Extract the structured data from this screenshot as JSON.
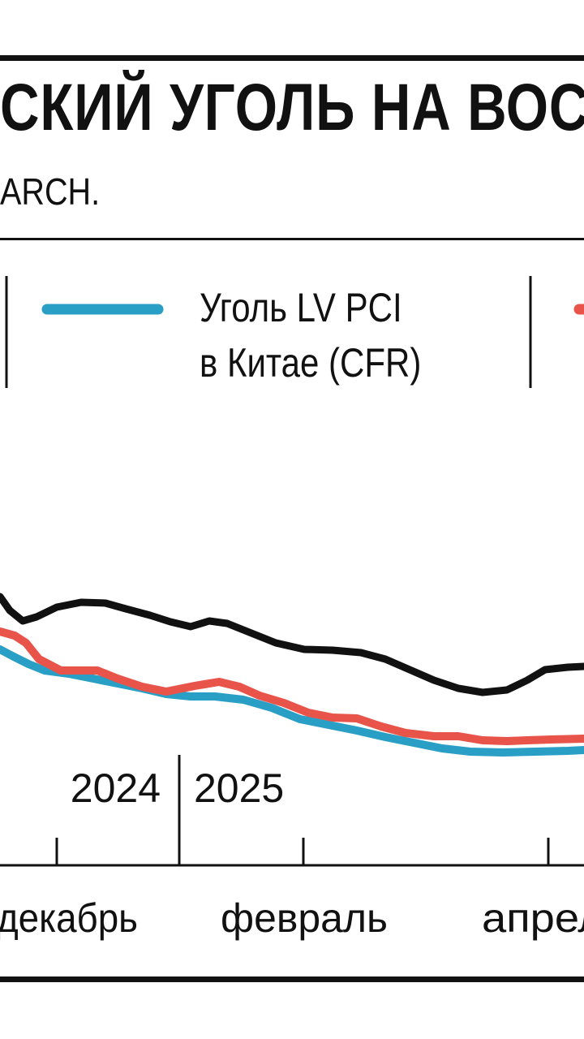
{
  "title": "СКИЙ УГОЛЬ НА ВОС",
  "source": "ARCH.",
  "chart_data": {
    "type": "line",
    "series": [
      {
        "key": "black",
        "name": "",
        "color": "#111111",
        "points": [
          [
            0,
            735
          ],
          [
            12,
            752
          ],
          [
            28,
            765
          ],
          [
            45,
            760
          ],
          [
            70,
            748
          ],
          [
            100,
            742
          ],
          [
            130,
            743
          ],
          [
            155,
            750
          ],
          [
            185,
            758
          ],
          [
            210,
            766
          ],
          [
            235,
            772
          ],
          [
            258,
            765
          ],
          [
            280,
            768
          ],
          [
            310,
            780
          ],
          [
            340,
            792
          ],
          [
            375,
            800
          ],
          [
            410,
            801
          ],
          [
            445,
            804
          ],
          [
            475,
            812
          ],
          [
            505,
            825
          ],
          [
            535,
            838
          ],
          [
            565,
            848
          ],
          [
            595,
            853
          ],
          [
            625,
            850
          ],
          [
            650,
            838
          ],
          [
            672,
            825
          ],
          [
            700,
            822
          ],
          [
            720,
            821
          ]
        ]
      },
      {
        "key": "red",
        "name": "",
        "color": "#e8534a",
        "points": [
          [
            0,
            778
          ],
          [
            18,
            783
          ],
          [
            32,
            792
          ],
          [
            48,
            812
          ],
          [
            75,
            826
          ],
          [
            100,
            826
          ],
          [
            120,
            826
          ],
          [
            145,
            836
          ],
          [
            175,
            846
          ],
          [
            205,
            852
          ],
          [
            240,
            845
          ],
          [
            270,
            840
          ],
          [
            295,
            846
          ],
          [
            320,
            857
          ],
          [
            350,
            866
          ],
          [
            380,
            878
          ],
          [
            410,
            884
          ],
          [
            440,
            885
          ],
          [
            470,
            895
          ],
          [
            500,
            903
          ],
          [
            535,
            907
          ],
          [
            565,
            907
          ],
          [
            595,
            912
          ],
          [
            625,
            913
          ],
          [
            650,
            912
          ],
          [
            680,
            911
          ],
          [
            720,
            910
          ]
        ]
      },
      {
        "key": "blue",
        "name": "Уголь LV PCI в Китае (CFR)",
        "color": "#2a9fc5",
        "points": [
          [
            0,
            800
          ],
          [
            15,
            808
          ],
          [
            35,
            818
          ],
          [
            55,
            826
          ],
          [
            85,
            830
          ],
          [
            115,
            836
          ],
          [
            145,
            842
          ],
          [
            175,
            848
          ],
          [
            205,
            855
          ],
          [
            235,
            858
          ],
          [
            265,
            858
          ],
          [
            300,
            862
          ],
          [
            335,
            872
          ],
          [
            370,
            886
          ],
          [
            405,
            893
          ],
          [
            440,
            900
          ],
          [
            475,
            908
          ],
          [
            510,
            915
          ],
          [
            545,
            922
          ],
          [
            580,
            926
          ],
          [
            620,
            927
          ],
          [
            660,
            926
          ],
          [
            700,
            925
          ],
          [
            720,
            924
          ]
        ]
      }
    ],
    "year_labels": [
      "2024",
      "2025"
    ],
    "x_labels": [
      "декабрь",
      "февраль",
      "апрел"
    ],
    "legend": {
      "entries": [
        {
          "series": "blue",
          "lines": [
            "Уголь LV PCI",
            "в Китае (CFR)"
          ]
        },
        {
          "series": "red",
          "lines": []
        }
      ],
      "placement": "top"
    },
    "xlabel": "",
    "ylabel": ""
  }
}
